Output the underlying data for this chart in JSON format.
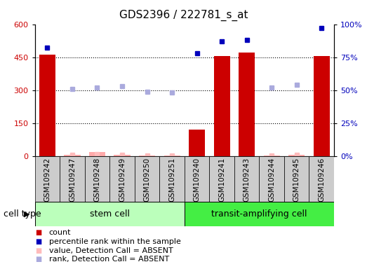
{
  "title": "GDS2396 / 222781_s_at",
  "samples": [
    "GSM109242",
    "GSM109247",
    "GSM109248",
    "GSM109249",
    "GSM109250",
    "GSM109251",
    "GSM109240",
    "GSM109241",
    "GSM109243",
    "GSM109244",
    "GSM109245",
    "GSM109246"
  ],
  "count_values": [
    460,
    4,
    18,
    7,
    2,
    3,
    120,
    455,
    470,
    3,
    5,
    455
  ],
  "count_absent": [
    false,
    true,
    true,
    true,
    true,
    true,
    false,
    false,
    false,
    true,
    true,
    false
  ],
  "percentile_rank": [
    82,
    null,
    null,
    null,
    null,
    null,
    78,
    87,
    88,
    null,
    null,
    97
  ],
  "value_absent": [
    null,
    5,
    8,
    7,
    3,
    2,
    null,
    null,
    null,
    2,
    4,
    null
  ],
  "rank_absent": [
    null,
    51,
    52,
    53,
    49,
    48,
    null,
    null,
    null,
    52,
    54,
    null
  ],
  "left_ylim": [
    0,
    600
  ],
  "right_ylim": [
    0,
    100
  ],
  "left_yticks": [
    0,
    150,
    300,
    450,
    600
  ],
  "right_yticks": [
    0,
    25,
    50,
    75,
    100
  ],
  "right_yticklabels": [
    "0%",
    "25%",
    "50%",
    "75%",
    "100%"
  ],
  "bar_color_present": "#cc0000",
  "bar_color_absent": "#ffaaaa",
  "percentile_color_present": "#0000bb",
  "value_absent_color": "#ffbbbb",
  "rank_absent_color": "#aaaadd",
  "stem_cell_color": "#bbffbb",
  "transit_color": "#44ee44",
  "bg_color": "#cccccc",
  "title_fontsize": 11,
  "axis_fontsize": 8,
  "label_fontsize": 7.5,
  "legend_fontsize": 8,
  "cell_type_fontsize": 9
}
